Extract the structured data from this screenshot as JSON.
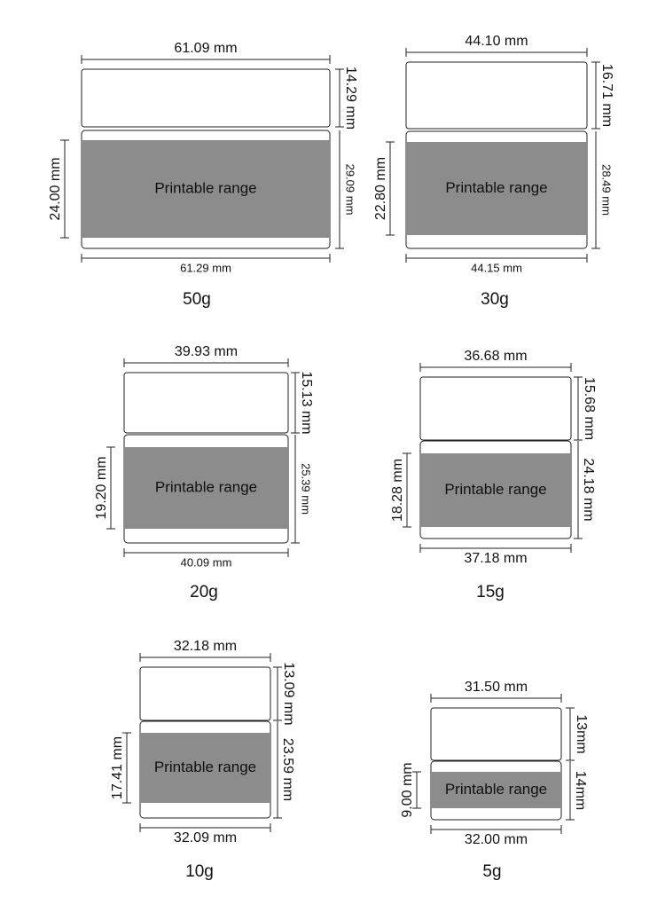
{
  "jars": [
    {
      "name": "50g",
      "lid_width": "61.09 mm",
      "lid_height": "14.29 mm",
      "print_height": "24.00 mm",
      "body_height": "29.09 mm",
      "body_width": "61.29 mm",
      "print_label": "Printable range"
    },
    {
      "name": "30g",
      "lid_width": "44.10 mm",
      "lid_height": "16.71 mm",
      "print_height": "22.80 mm",
      "body_height": "28.49 mm",
      "body_width": "44.15 mm",
      "print_label": "Printable range"
    },
    {
      "name": "20g",
      "lid_width": "39.93 mm",
      "lid_height": "15.13 mm",
      "print_height": "19.20 mm",
      "body_height": "25.39 mm",
      "body_width": "40.09 mm",
      "print_label": "Printable range"
    },
    {
      "name": "15g",
      "lid_width": "36.68 mm",
      "lid_height": "15.68 mm",
      "print_height": "18.28 mm",
      "body_height": "24.18 mm",
      "body_width": "37.18 mm",
      "print_label": "Printable range"
    },
    {
      "name": "10g",
      "lid_width": "32.18 mm",
      "lid_height": "13.09 mm",
      "print_height": "17.41 mm",
      "body_height": "23.59 mm",
      "body_width": "32.09 mm",
      "print_label": "Printable range"
    },
    {
      "name": "5g",
      "lid_width": "31.50 mm",
      "lid_height": "13mm",
      "print_height": "9.00 mm",
      "body_height": "14mm",
      "body_width": "32.00 mm",
      "print_label": "Printable range"
    }
  ]
}
